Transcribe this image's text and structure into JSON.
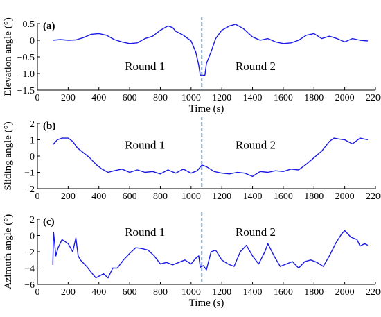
{
  "chart_data": [
    {
      "type": "line",
      "panel_label": "(a)",
      "xlabel": "Time (s)",
      "ylabel": "Elevation angle (°)",
      "xlim": [
        0,
        2200
      ],
      "ylim": [
        -1.5,
        0.5
      ],
      "xticks": [
        0,
        200,
        400,
        600,
        800,
        1000,
        1200,
        1400,
        1600,
        1800,
        2000,
        2200
      ],
      "yticks": [
        -1.5,
        -1.0,
        -0.5,
        0,
        0.5
      ],
      "ytick_labels": [
        "−1.5",
        "−1.0",
        "−0.5",
        "0",
        "0.5"
      ],
      "divider_x": 1070,
      "annotations": [
        {
          "text": "Round 1",
          "x": 700,
          "y": -0.9
        },
        {
          "text": "Round 2",
          "x": 1420,
          "y": -0.9
        }
      ],
      "series": [
        {
          "color": "#1a1ae6",
          "x": [
            100,
            150,
            200,
            250,
            300,
            350,
            400,
            450,
            500,
            550,
            600,
            650,
            700,
            750,
            800,
            850,
            880,
            900,
            950,
            1000,
            1030,
            1050,
            1060,
            1080,
            1090,
            1100,
            1130,
            1160,
            1200,
            1250,
            1290,
            1340,
            1400,
            1450,
            1500,
            1550,
            1600,
            1650,
            1700,
            1750,
            1800,
            1850,
            1900,
            1950,
            2000,
            2050,
            2100,
            2150
          ],
          "y": [
            0.0,
            0.02,
            0.0,
            0.01,
            0.08,
            0.18,
            0.2,
            0.15,
            0.02,
            -0.05,
            -0.1,
            -0.08,
            0.05,
            0.12,
            0.3,
            0.43,
            0.38,
            0.27,
            0.15,
            -0.02,
            -0.35,
            -0.75,
            -1.05,
            -1.05,
            -1.05,
            -0.7,
            -0.35,
            0.05,
            0.3,
            0.43,
            0.48,
            0.35,
            0.1,
            0.0,
            0.05,
            -0.05,
            -0.1,
            -0.08,
            0.0,
            0.15,
            0.2,
            0.05,
            0.12,
            0.05,
            -0.05,
            0.05,
            0.0,
            -0.02
          ]
        }
      ]
    },
    {
      "type": "line",
      "panel_label": "(b)",
      "xlabel": "",
      "ylabel": "Sliding angle (°)",
      "xlim": [
        0,
        2200
      ],
      "ylim": [
        -2,
        2
      ],
      "xticks": [
        0,
        200,
        400,
        600,
        800,
        1000,
        1200,
        1400,
        1600,
        1800,
        2000,
        2200
      ],
      "yticks": [
        -2,
        -1,
        0,
        1,
        2
      ],
      "ytick_labels": [
        "−2",
        "−1",
        "0",
        "1",
        "2"
      ],
      "divider_x": 1070,
      "annotations": [
        {
          "text": "Round 1",
          "x": 700,
          "y": 0.45
        },
        {
          "text": "Round 2",
          "x": 1420,
          "y": 0.45
        }
      ],
      "series": [
        {
          "color": "#1a1ae6",
          "x": [
            100,
            130,
            160,
            200,
            230,
            260,
            300,
            340,
            380,
            420,
            460,
            500,
            550,
            600,
            650,
            700,
            750,
            800,
            850,
            900,
            950,
            1000,
            1040,
            1070,
            1100,
            1150,
            1200,
            1250,
            1300,
            1350,
            1400,
            1450,
            1500,
            1550,
            1600,
            1650,
            1700,
            1750,
            1800,
            1850,
            1900,
            1930,
            1960,
            2000,
            2050,
            2100,
            2150
          ],
          "y": [
            0.7,
            1.0,
            1.1,
            1.1,
            0.9,
            0.5,
            0.2,
            -0.1,
            -0.5,
            -0.8,
            -1.0,
            -0.9,
            -0.8,
            -1.0,
            -0.85,
            -1.0,
            -0.95,
            -1.1,
            -0.85,
            -1.05,
            -0.8,
            -1.05,
            -0.9,
            -0.55,
            -0.65,
            -0.95,
            -1.05,
            -1.1,
            -1.0,
            -1.05,
            -1.25,
            -0.95,
            -1.0,
            -0.9,
            -0.95,
            -0.8,
            -0.85,
            -0.5,
            -0.1,
            0.3,
            0.9,
            1.1,
            1.05,
            1.0,
            0.75,
            1.1,
            1.0
          ]
        }
      ]
    },
    {
      "type": "line",
      "panel_label": "(c)",
      "xlabel": "Time (s)",
      "ylabel": "Azimuth angle (°)",
      "xlim": [
        0,
        2200
      ],
      "ylim": [
        -6,
        2
      ],
      "xticks": [
        0,
        200,
        400,
        600,
        800,
        1000,
        1200,
        1400,
        1600,
        1800,
        2000,
        2200
      ],
      "yticks": [
        -6,
        -4,
        -2,
        0,
        2
      ],
      "ytick_labels": [
        "−6",
        "−4",
        "−2",
        "0",
        "2"
      ],
      "divider_x": 1070,
      "annotations": [
        {
          "text": "Round 1",
          "x": 700,
          "y": -0.05
        },
        {
          "text": "Round 2",
          "x": 1420,
          "y": -0.05
        }
      ],
      "series": [
        {
          "color": "#1a1ae6",
          "x": [
            100,
            105,
            110,
            120,
            135,
            160,
            200,
            230,
            250,
            265,
            280,
            300,
            320,
            350,
            380,
            400,
            430,
            460,
            490,
            520,
            560,
            600,
            640,
            680,
            720,
            760,
            800,
            840,
            880,
            920,
            960,
            1000,
            1030,
            1050,
            1060,
            1080,
            1100,
            1130,
            1160,
            1200,
            1240,
            1280,
            1320,
            1360,
            1400,
            1440,
            1480,
            1500,
            1540,
            1580,
            1620,
            1660,
            1700,
            1740,
            1780,
            1820,
            1860,
            1900,
            1940,
            1980,
            2000,
            2040,
            2080,
            2100,
            2130,
            2150
          ],
          "y": [
            -3.6,
            0.4,
            -0.5,
            -2.5,
            -1.5,
            -0.5,
            -1.0,
            -2.0,
            -0.3,
            -2.5,
            -3.0,
            -3.4,
            -3.8,
            -4.5,
            -5.2,
            -5.0,
            -4.7,
            -5.2,
            -4.0,
            -4.0,
            -3.0,
            -2.2,
            -1.5,
            -1.6,
            -1.8,
            -2.5,
            -3.5,
            -3.3,
            -3.6,
            -3.3,
            -3.0,
            -3.5,
            -2.8,
            -2.5,
            -3.9,
            -3.7,
            -4.2,
            -2.0,
            -1.8,
            -3.0,
            -3.5,
            -3.8,
            -2.0,
            -1.2,
            -2.5,
            -3.5,
            -2.0,
            -1.0,
            -2.5,
            -3.8,
            -3.5,
            -3.2,
            -4.0,
            -3.2,
            -3.0,
            -3.3,
            -3.8,
            -2.5,
            -1.0,
            0.2,
            0.6,
            -0.2,
            -0.5,
            -1.3,
            -1.0,
            -1.2
          ]
        }
      ]
    }
  ]
}
